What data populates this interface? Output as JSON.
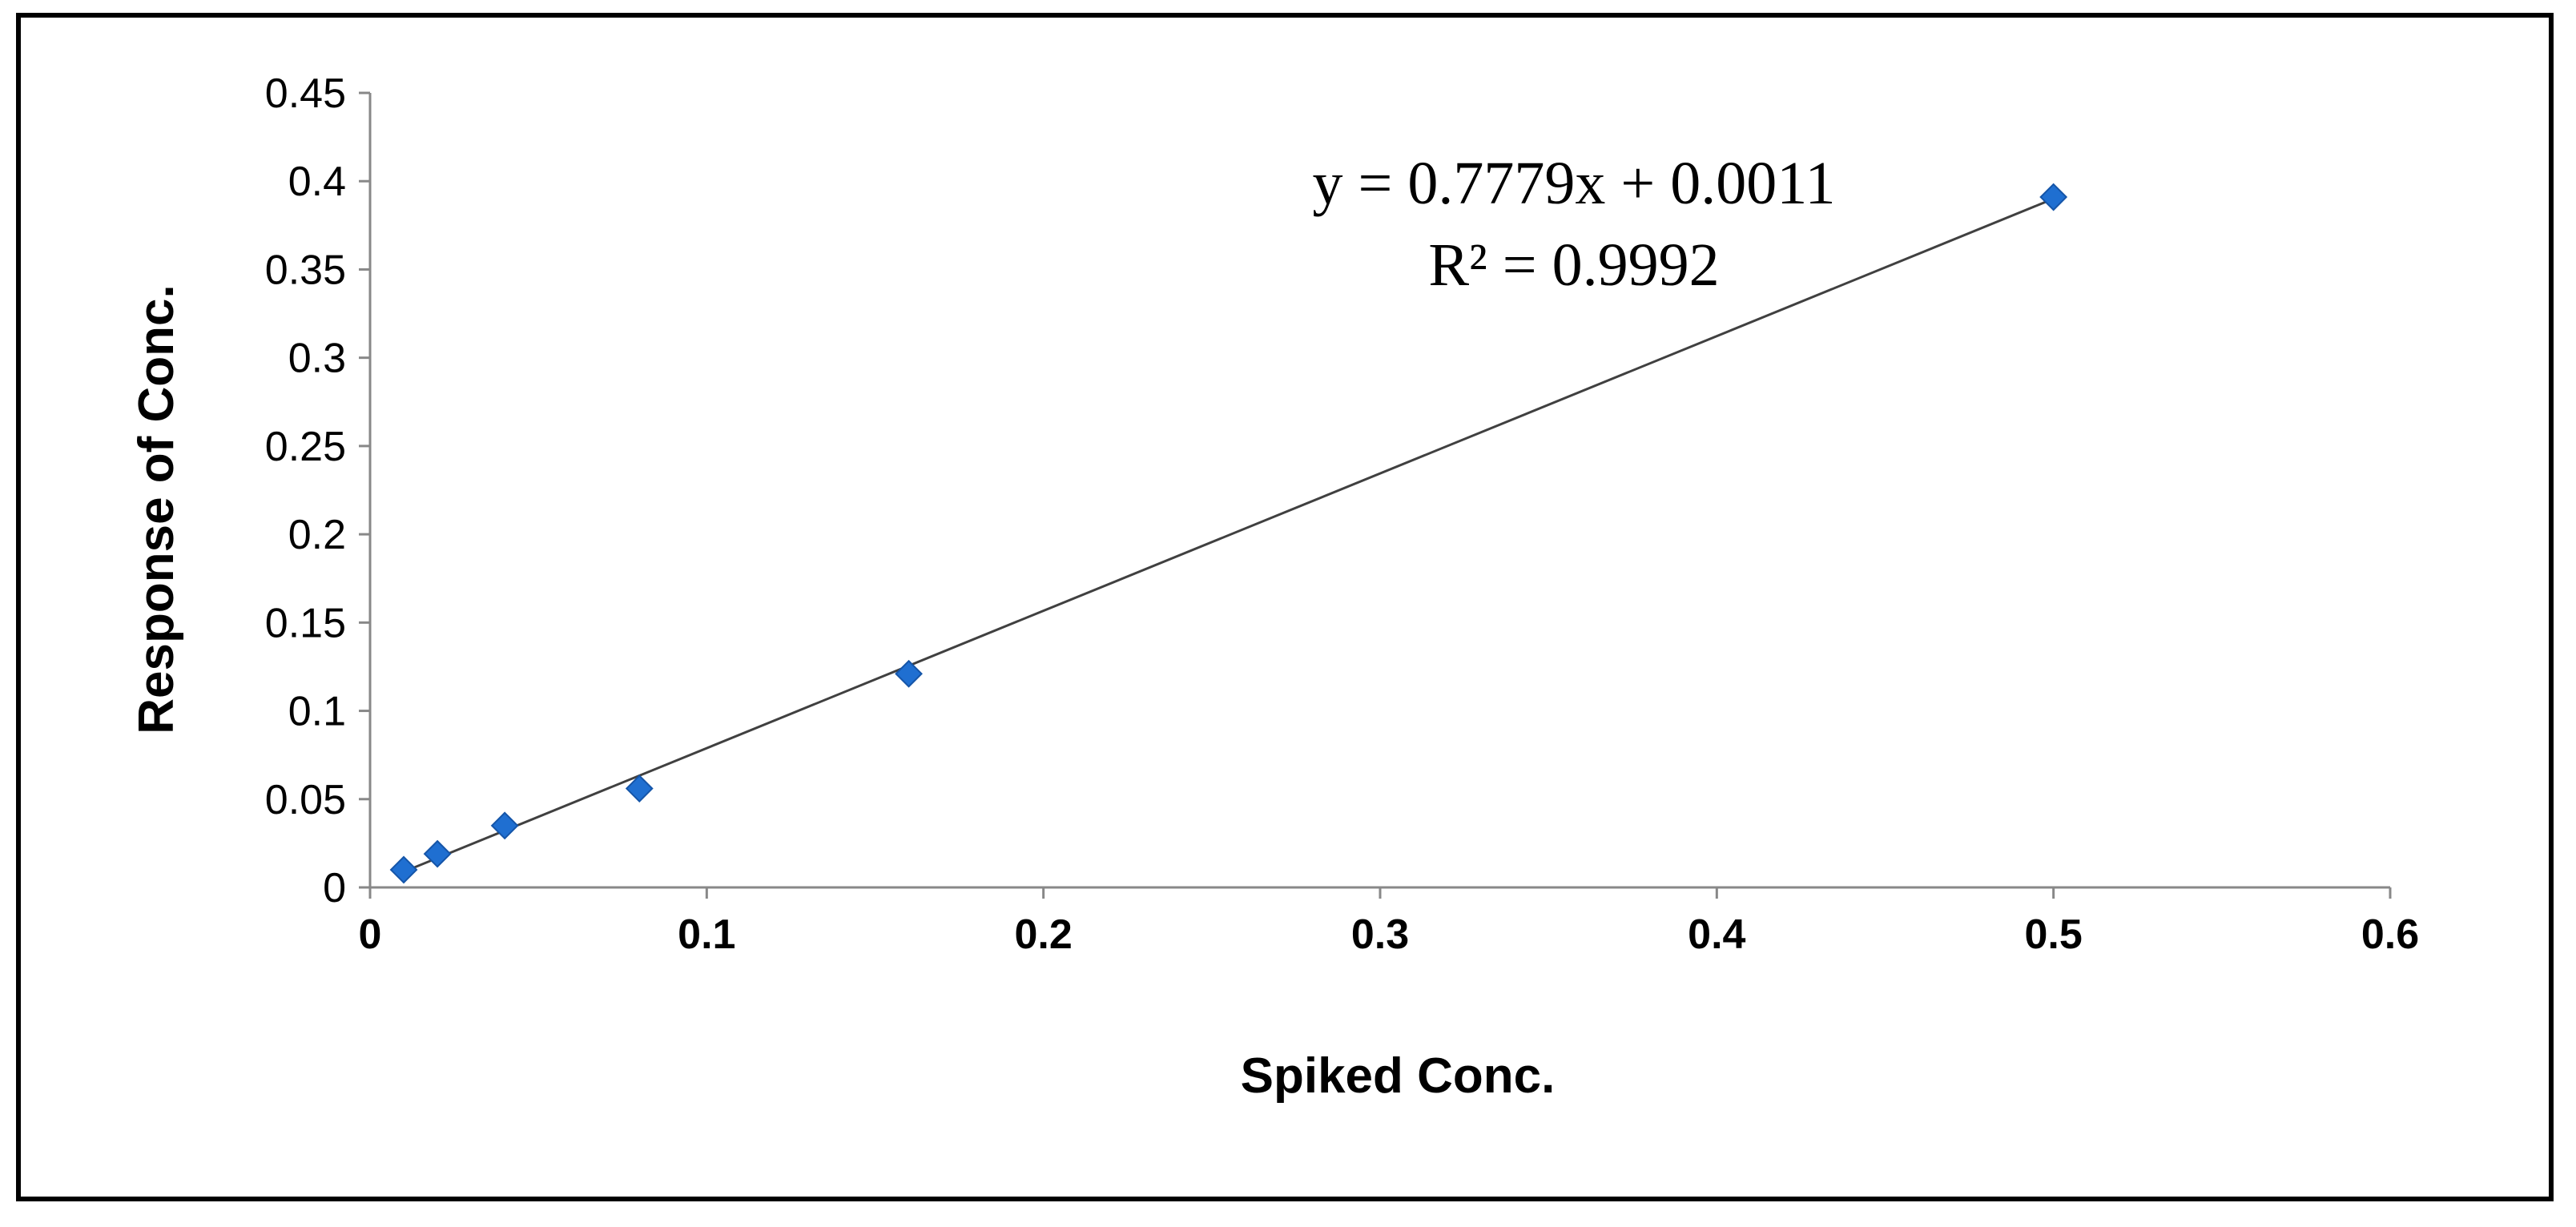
{
  "chart_data": {
    "type": "scatter",
    "title": "",
    "xlabel": "Spiked Conc.",
    "ylabel": "Response of Conc.",
    "xlim": [
      0,
      0.6
    ],
    "ylim": [
      0,
      0.45
    ],
    "x_ticks": [
      "0",
      "0.1",
      "0.2",
      "0.3",
      "0.4",
      "0.5",
      "0.6"
    ],
    "y_ticks": [
      "0",
      "0.05",
      "0.1",
      "0.15",
      "0.2",
      "0.25",
      "0.3",
      "0.35",
      "0.4",
      "0.45"
    ],
    "grid": false,
    "legend": "none",
    "series": [
      {
        "marker": "diamond",
        "color": "#1f6fd1",
        "points": [
          {
            "x": 0.01,
            "y": 0.01
          },
          {
            "x": 0.02,
            "y": 0.019
          },
          {
            "x": 0.04,
            "y": 0.035
          },
          {
            "x": 0.08,
            "y": 0.056
          },
          {
            "x": 0.16,
            "y": 0.121
          },
          {
            "x": 0.5,
            "y": 0.391
          }
        ]
      }
    ],
    "trendline": {
      "type": "linear",
      "slope": 0.7779,
      "intercept": 0.0011,
      "x_range": [
        0.01,
        0.5
      ],
      "color": "#404040",
      "equation_text": "y = 0.7779x + 0.0011",
      "r2_text": "R² = 0.9992"
    }
  }
}
